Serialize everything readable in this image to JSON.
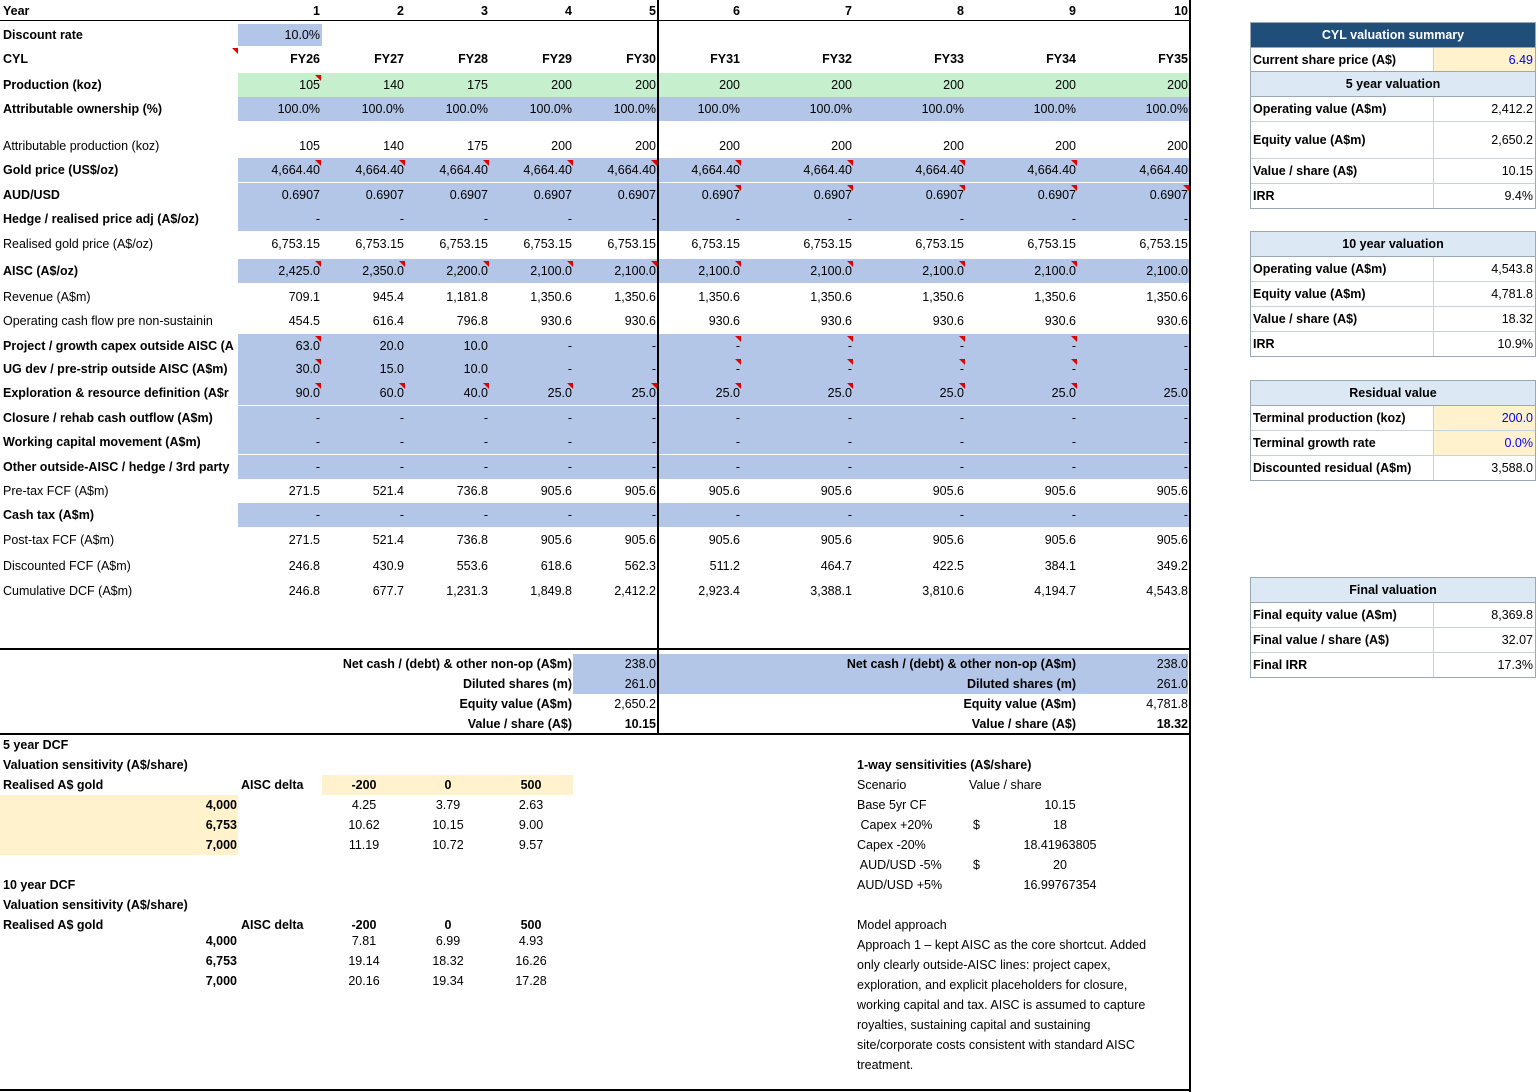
{
  "grid": {
    "columns": [
      "1",
      "2",
      "3",
      "4",
      "5",
      "6",
      "7",
      "8",
      "9",
      "10"
    ],
    "fiscal_years": [
      "FY26",
      "FY27",
      "FY28",
      "FY29",
      "FY30",
      "FY31",
      "FY32",
      "FY33",
      "FY34",
      "FY35"
    ],
    "rows": [
      {
        "key": "year",
        "label": "Year",
        "bold": true,
        "values": [
          "1",
          "2",
          "3",
          "4",
          "5",
          "6",
          "7",
          "8",
          "9",
          "10"
        ]
      },
      {
        "key": "discount",
        "label": "Discount rate",
        "bold": true,
        "values": [
          "10.0%"
        ]
      },
      {
        "key": "cyl",
        "label": "CYL",
        "bold": true,
        "values": [
          "FY26",
          "FY27",
          "FY28",
          "FY29",
          "FY30",
          "FY31",
          "FY32",
          "FY33",
          "FY34",
          "FY35"
        ]
      },
      {
        "key": "production",
        "label": "Production (koz)",
        "bold": true,
        "fill": "green",
        "values": [
          "105",
          "140",
          "175",
          "200",
          "200",
          "200",
          "200",
          "200",
          "200",
          "200"
        ]
      },
      {
        "key": "ownership",
        "label": "Attributable ownership (%)",
        "bold": true,
        "fill": "blue",
        "values": [
          "100.0%",
          "100.0%",
          "100.0%",
          "100.0%",
          "100.0%",
          "100.0%",
          "100.0%",
          "100.0%",
          "100.0%",
          "100.0%"
        ]
      },
      {
        "key": "attr_prod",
        "label": "Attributable production (koz)",
        "bold": false,
        "values": [
          "105",
          "140",
          "175",
          "200",
          "200",
          "200",
          "200",
          "200",
          "200",
          "200"
        ]
      },
      {
        "key": "gold",
        "label": "Gold price (US$/oz)",
        "bold": true,
        "fill": "blue",
        "values": [
          "4,664.40",
          "4,664.40",
          "4,664.40",
          "4,664.40",
          "4,664.40",
          "4,664.40",
          "4,664.40",
          "4,664.40",
          "4,664.40",
          "4,664.40"
        ]
      },
      {
        "key": "audusd",
        "label": "AUD/USD",
        "bold": true,
        "fill": "blue",
        "values": [
          "0.6907",
          "0.6907",
          "0.6907",
          "0.6907",
          "0.6907",
          "0.6907",
          "0.6907",
          "0.6907",
          "0.6907",
          "0.6907"
        ]
      },
      {
        "key": "hedge",
        "label": "Hedge / realised price adj (A$/oz)",
        "bold": true,
        "fill": "blue",
        "values": [
          "-",
          "-",
          "-",
          "-",
          "-",
          "-",
          "-",
          "-",
          "-",
          "-"
        ]
      },
      {
        "key": "realised",
        "label": "Realised gold price (A$/oz)",
        "bold": false,
        "values": [
          "6,753.15",
          "6,753.15",
          "6,753.15",
          "6,753.15",
          "6,753.15",
          "6,753.15",
          "6,753.15",
          "6,753.15",
          "6,753.15",
          "6,753.15"
        ]
      },
      {
        "key": "aisc",
        "label": "AISC (A$/oz)",
        "bold": true,
        "fill": "blue",
        "values": [
          "2,425.0",
          "2,350.0",
          "2,200.0",
          "2,100.0",
          "2,100.0",
          "2,100.0",
          "2,100.0",
          "2,100.0",
          "2,100.0",
          "2,100.0"
        ]
      },
      {
        "key": "revenue",
        "label": "Revenue (A$m)",
        "bold": false,
        "values": [
          "709.1",
          "945.4",
          "1,181.8",
          "1,350.6",
          "1,350.6",
          "1,350.6",
          "1,350.6",
          "1,350.6",
          "1,350.6",
          "1,350.6"
        ]
      },
      {
        "key": "ocf",
        "label": "Operating cash flow pre non-sustainin",
        "bold": false,
        "values": [
          "454.5",
          "616.4",
          "796.8",
          "930.6",
          "930.6",
          "930.6",
          "930.6",
          "930.6",
          "930.6",
          "930.6"
        ]
      },
      {
        "key": "project",
        "label": "Project / growth capex outside AISC (A",
        "bold": true,
        "fill": "blue",
        "values": [
          "63.0",
          "20.0",
          "10.0",
          "-",
          "-",
          "-",
          "-",
          "-",
          "-",
          "-"
        ]
      },
      {
        "key": "ugdev",
        "label": "UG dev / pre-strip outside AISC (A$m)",
        "bold": true,
        "fill": "blue",
        "values": [
          "30.0",
          "15.0",
          "10.0",
          "-",
          "-",
          "-",
          "-",
          "-",
          "-",
          "-"
        ]
      },
      {
        "key": "explor",
        "label": "Exploration & resource definition (A$r",
        "bold": true,
        "fill": "blue",
        "values": [
          "90.0",
          "60.0",
          "40.0",
          "25.0",
          "25.0",
          "25.0",
          "25.0",
          "25.0",
          "25.0",
          "25.0"
        ]
      },
      {
        "key": "closure",
        "label": "Closure / rehab cash outflow (A$m)",
        "bold": true,
        "fill": "blue",
        "values": [
          "-",
          "-",
          "-",
          "-",
          "-",
          "-",
          "-",
          "-",
          "-",
          "-"
        ]
      },
      {
        "key": "wc",
        "label": "Working capital movement (A$m)",
        "bold": true,
        "fill": "blue",
        "values": [
          "-",
          "-",
          "-",
          "-",
          "-",
          "-",
          "-",
          "-",
          "-",
          "-"
        ]
      },
      {
        "key": "other",
        "label": "Other outside-AISC / hedge / 3rd party",
        "bold": true,
        "fill": "blue",
        "values": [
          "-",
          "-",
          "-",
          "-",
          "-",
          "-",
          "-",
          "-",
          "-",
          "-"
        ]
      },
      {
        "key": "pretax",
        "label": "Pre-tax FCF (A$m)",
        "bold": false,
        "values": [
          "271.5",
          "521.4",
          "736.8",
          "905.6",
          "905.6",
          "905.6",
          "905.6",
          "905.6",
          "905.6",
          "905.6"
        ]
      },
      {
        "key": "tax",
        "label": "Cash tax (A$m)",
        "bold": true,
        "fill": "blue",
        "values": [
          "-",
          "-",
          "-",
          "-",
          "-",
          "-",
          "-",
          "-",
          "-",
          "-"
        ]
      },
      {
        "key": "posttax",
        "label": "Post-tax FCF (A$m)",
        "bold": false,
        "values": [
          "271.5",
          "521.4",
          "736.8",
          "905.6",
          "905.6",
          "905.6",
          "905.6",
          "905.6",
          "905.6",
          "905.6"
        ]
      },
      {
        "key": "disc",
        "label": "Discounted FCF (A$m)",
        "bold": false,
        "values": [
          "246.8",
          "430.9",
          "553.6",
          "618.6",
          "562.3",
          "511.2",
          "464.7",
          "422.5",
          "384.1",
          "349.2"
        ]
      },
      {
        "key": "cumdcf",
        "label": "Cumulative DCF (A$m)",
        "bold": false,
        "values": [
          "246.8",
          "677.7",
          "1,231.3",
          "1,849.8",
          "2,412.2",
          "2,923.4",
          "3,388.1",
          "3,810.6",
          "4,194.7",
          "4,543.8"
        ]
      }
    ]
  },
  "bridge5": {
    "labels": [
      "Net cash / (debt) & other non-op (A$m)",
      "Diluted shares (m)",
      "Equity value (A$m)",
      "Value / share (A$)"
    ],
    "values": [
      "238.0",
      "261.0",
      "2,650.2",
      "10.15"
    ]
  },
  "bridge10": {
    "labels": [
      "Net cash / (debt) & other non-op (A$m)",
      "Diluted shares (m)",
      "Equity value (A$m)",
      "Value / share (A$)"
    ],
    "values": [
      "238.0",
      "261.0",
      "4,781.8",
      "18.32"
    ]
  },
  "sens5": {
    "heading": "5 year DCF",
    "title": "Valuation sensitivity (A$/share)",
    "row_label": "Realised A$ gold",
    "col_label": "AISC delta",
    "cols": [
      "-200",
      "0",
      "500"
    ],
    "rows": [
      {
        "gold": "4,000",
        "vals": [
          "4.25",
          "3.79",
          "2.63"
        ]
      },
      {
        "gold": "6,753",
        "vals": [
          "10.62",
          "10.15",
          "9.00"
        ]
      },
      {
        "gold": "7,000",
        "vals": [
          "11.19",
          "10.72",
          "9.57"
        ]
      }
    ]
  },
  "sens10": {
    "heading": "10 year DCF",
    "title": "Valuation sensitivity (A$/share)",
    "row_label": "Realised A$ gold",
    "col_label": "AISC delta",
    "cols": [
      "-200",
      "0",
      "500"
    ],
    "rows": [
      {
        "gold": "4,000",
        "vals": [
          "7.81",
          "6.99",
          "4.93"
        ]
      },
      {
        "gold": "6,753",
        "vals": [
          "19.14",
          "18.32",
          "16.26"
        ]
      },
      {
        "gold": "7,000",
        "vals": [
          "20.16",
          "19.34",
          "17.28"
        ]
      }
    ]
  },
  "oneway": {
    "title": "1-way sensitivities (A$/share)",
    "h_scenario": "Scenario",
    "h_value": "Value / share",
    "rows": [
      {
        "scenario": "Base 5yr CF",
        "cur": "",
        "value": "10.15"
      },
      {
        "scenario": " Capex +20%",
        "cur": "$",
        "value": "18"
      },
      {
        "scenario": "Capex -20%",
        "cur": "",
        "value": "18.41963805"
      },
      {
        "scenario": " AUD/USD -5%",
        "cur": "$",
        "value": "20"
      },
      {
        "scenario": "AUD/USD +5%",
        "cur": "",
        "value": "16.99767354"
      }
    ]
  },
  "approach": {
    "title": "Model approach",
    "lines": [
      "Approach 1 – kept AISC as the core shortcut. Added",
      "only clearly outside-AISC lines: project capex,",
      "exploration, and explicit placeholders for closure,",
      "working capital and tax. AISC is assumed to capture",
      "royalties, sustaining capital and sustaining",
      "site/corporate costs consistent with standard AISC",
      "treatment."
    ]
  },
  "summary": {
    "title": "CYL valuation summary",
    "price_label": "Current share price (A$)",
    "price_value": "6.49",
    "five": {
      "title": "5 year valuation",
      "rows": [
        {
          "label": "Operating value (A$m)",
          "value": "2,412.2"
        },
        {
          "label": "Equity value (A$m)",
          "value": "2,650.2"
        },
        {
          "label": "Value / share (A$)",
          "value": "10.15"
        },
        {
          "label": "IRR",
          "value": "9.4%"
        }
      ]
    },
    "ten": {
      "title": "10 year valuation",
      "rows": [
        {
          "label": "Operating value (A$m)",
          "value": "4,543.8"
        },
        {
          "label": "Equity value (A$m)",
          "value": "4,781.8"
        },
        {
          "label": "Value / share (A$)",
          "value": "18.32"
        },
        {
          "label": "IRR",
          "value": "10.9%"
        }
      ]
    },
    "residual": {
      "title": "Residual value",
      "rows": [
        {
          "label": "Terminal production (koz)",
          "value": "200.0",
          "input": true
        },
        {
          "label": "Terminal growth rate",
          "value": "0.0%",
          "input": true
        },
        {
          "label": "Discounted residual (A$m)",
          "value": "3,588.0",
          "input": false
        }
      ]
    },
    "final": {
      "title": "Final valuation",
      "rows": [
        {
          "label": "Final equity value (A$m)",
          "value": "8,369.8"
        },
        {
          "label": "Final value / share (A$)",
          "value": "32.07"
        },
        {
          "label": "Final IRR",
          "value": "17.3%"
        }
      ]
    }
  }
}
